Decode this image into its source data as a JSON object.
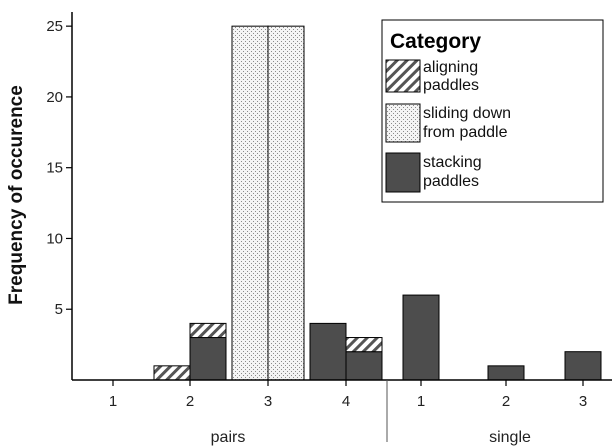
{
  "chart_data": {
    "type": "bar",
    "stacked": true,
    "ylabel": "Frequency of occurence",
    "xlabel": "",
    "ylim": [
      0,
      26
    ],
    "yticks": [
      5,
      10,
      15,
      20,
      25
    ],
    "grid": false,
    "legend": {
      "title": "Category",
      "placement": "top-right",
      "entries": [
        {
          "key": "aligning",
          "lines": [
            "aligning",
            "paddles"
          ]
        },
        {
          "key": "sliding",
          "lines": [
            "sliding down",
            "from paddle"
          ]
        },
        {
          "key": "stacking",
          "lines": [
            "stacking",
            "paddles"
          ]
        }
      ]
    },
    "groups": [
      {
        "name": "pairs",
        "categories": [
          "1",
          "2",
          "3",
          "4"
        ]
      },
      {
        "name": "single",
        "categories": [
          "1",
          "2",
          "3"
        ]
      }
    ],
    "bars": [
      {
        "group": 0,
        "cat": 0,
        "side": "left",
        "series": "aligning",
        "values": {
          "aligning": 0
        }
      },
      {
        "group": 0,
        "cat": 1,
        "side": "left",
        "series": "aligning",
        "values": {
          "aligning": 1
        }
      },
      {
        "group": 0,
        "cat": 1,
        "side": "right",
        "series": "mixed",
        "values": {
          "stacking": 3,
          "aligning": 1
        }
      },
      {
        "group": 0,
        "cat": 2,
        "side": "left",
        "series": "sliding",
        "values": {
          "sliding": 25
        }
      },
      {
        "group": 0,
        "cat": 2,
        "side": "right",
        "series": "sliding",
        "values": {
          "sliding": 25
        }
      },
      {
        "group": 0,
        "cat": 3,
        "side": "left",
        "series": "stacking",
        "values": {
          "stacking": 4
        }
      },
      {
        "group": 0,
        "cat": 3,
        "side": "right",
        "series": "mixed",
        "values": {
          "stacking": 2,
          "aligning": 1
        }
      },
      {
        "group": 1,
        "cat": 0,
        "side": "left",
        "series": "stacking",
        "values": {
          "stacking": 6
        }
      },
      {
        "group": 1,
        "cat": 1,
        "side": "left",
        "series": "stacking",
        "values": {
          "stacking": 1
        }
      },
      {
        "group": 1,
        "cat": 2,
        "side": "left",
        "series": "stacking",
        "values": {
          "stacking": 2
        }
      }
    ],
    "colors": {
      "stacking": "#4d4d4d",
      "sliding_fill": "#f0f0f0",
      "aligning_stripe": "#555555"
    }
  }
}
